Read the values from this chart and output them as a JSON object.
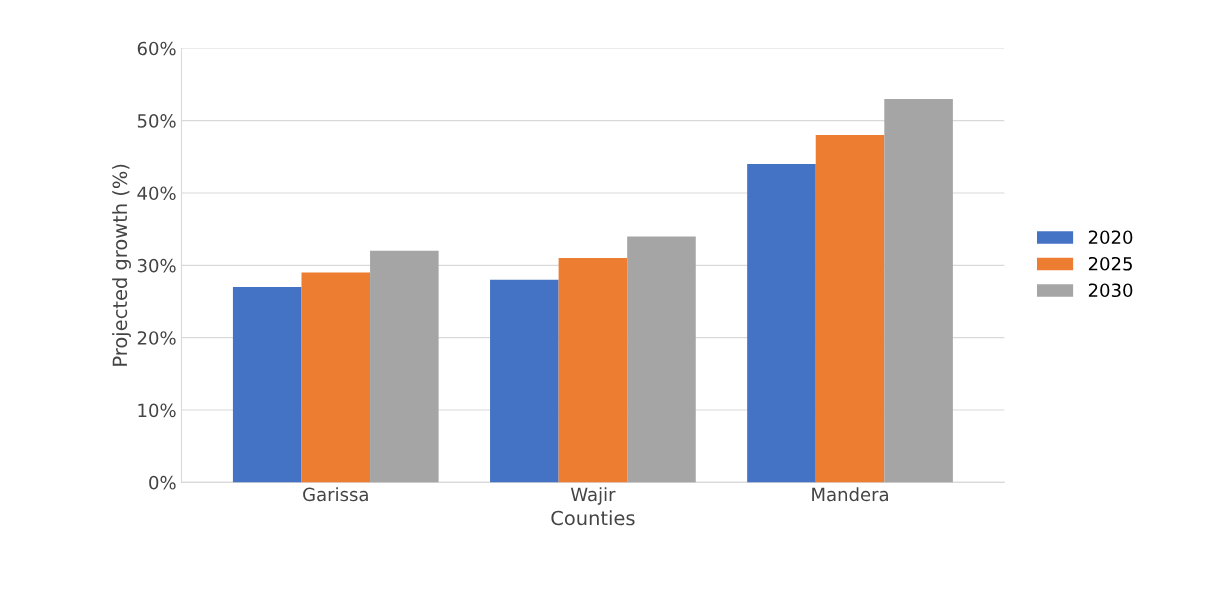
{
  "chart_data": {
    "type": "bar",
    "xlabel": "Counties",
    "ylabel": "Projected growth (%)",
    "categories": [
      "Garissa",
      "Wajir",
      "Mandera"
    ],
    "series": [
      {
        "name": "2020",
        "color": "#4472c4",
        "values": [
          27,
          28,
          44
        ]
      },
      {
        "name": "2025",
        "color": "#ed7d31",
        "values": [
          29,
          31,
          48
        ]
      },
      {
        "name": "2030",
        "color": "#a5a5a5",
        "values": [
          32,
          34,
          53
        ]
      }
    ],
    "ylim": [
      0,
      60
    ],
    "yticks": [
      {
        "value": 0,
        "label": "0%"
      },
      {
        "value": 10,
        "label": "10%"
      },
      {
        "value": 20,
        "label": "20%"
      },
      {
        "value": 30,
        "label": "30%"
      },
      {
        "value": 40,
        "label": "40%"
      },
      {
        "value": 50,
        "label": "50%"
      },
      {
        "value": 60,
        "label": "60%"
      }
    ],
    "grid": "y",
    "legend": "right"
  }
}
